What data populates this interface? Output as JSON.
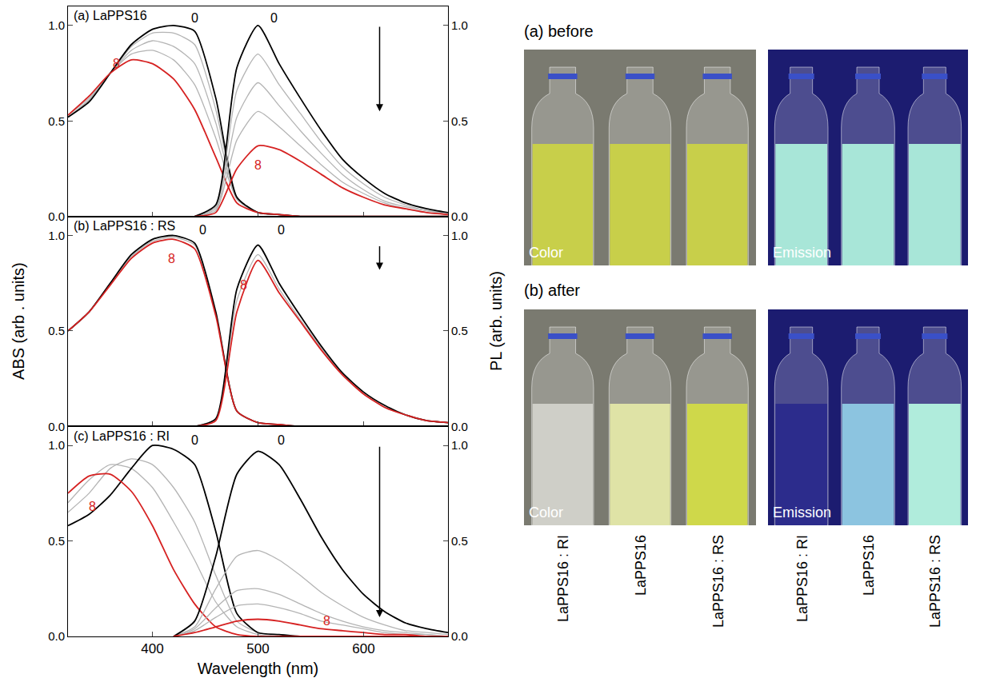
{
  "chart_data": [
    {
      "type": "line",
      "title": "(a) LaPPS16",
      "x": [
        320,
        340,
        360,
        380,
        400,
        420,
        440,
        460,
        480,
        500,
        520,
        540,
        560,
        580,
        600,
        620,
        640,
        660,
        680
      ],
      "xlim": [
        320,
        680
      ],
      "xticks": [
        400,
        500,
        600
      ],
      "ylim": [
        0,
        1.1
      ],
      "yticks": [
        {
          "value": 0,
          "label": "0.0"
        },
        {
          "value": 0.5,
          "label": "0.5"
        },
        {
          "value": 1,
          "label": "1.0"
        }
      ],
      "y2lim": [
        0,
        1.1
      ],
      "y2ticks": [
        {
          "value": 0,
          "label": "0.0"
        },
        {
          "value": 0.5,
          "label": "0.5"
        },
        {
          "value": 1,
          "label": "1.0"
        }
      ],
      "grid": false,
      "tick_labels": "y",
      "series": [
        {
          "color": "#b4b4b4",
          "axis": "y",
          "values": [
            0.52,
            0.61,
            0.75,
            0.89,
            0.96,
            0.96,
            0.9,
            0.56,
            0.1,
            0.02,
            0.01,
            0,
            0,
            0,
            0,
            0,
            0,
            0,
            0
          ]
        },
        {
          "color": "#b4b4b4",
          "axis": "y",
          "values": [
            0.52,
            0.61,
            0.75,
            0.87,
            0.92,
            0.89,
            0.8,
            0.49,
            0.09,
            0.02,
            0.01,
            0,
            0,
            0,
            0,
            0,
            0,
            0,
            0
          ]
        },
        {
          "color": "#b4b4b4",
          "axis": "y",
          "values": [
            0.53,
            0.62,
            0.75,
            0.85,
            0.87,
            0.82,
            0.69,
            0.41,
            0.09,
            0.02,
            0.01,
            0,
            0,
            0,
            0,
            0,
            0,
            0,
            0
          ]
        },
        {
          "color": "#000000",
          "axis": "y",
          "values": [
            0.52,
            0.6,
            0.75,
            0.9,
            0.98,
            1.0,
            0.97,
            0.62,
            0.1,
            0.02,
            0.01,
            0,
            0,
            0,
            0,
            0,
            0,
            0,
            0
          ]
        },
        {
          "color": "#d62222",
          "axis": "y",
          "values": [
            0.53,
            0.63,
            0.75,
            0.82,
            0.8,
            0.72,
            0.56,
            0.31,
            0.07,
            0.02,
            0.01,
            0,
            0,
            0,
            0,
            0,
            0,
            0,
            0
          ]
        },
        {
          "color": "#b4b4b4",
          "axis": "y2",
          "values": [
            null,
            null,
            null,
            null,
            null,
            null,
            0,
            0.05,
            0.66,
            0.85,
            0.69,
            0.54,
            0.39,
            0.26,
            0.17,
            0.1,
            0.06,
            0.03,
            0.02
          ]
        },
        {
          "color": "#b4b4b4",
          "axis": "y2",
          "values": [
            null,
            null,
            null,
            null,
            null,
            null,
            0,
            0.04,
            0.52,
            0.7,
            0.58,
            0.45,
            0.33,
            0.22,
            0.14,
            0.08,
            0.05,
            0.03,
            0.01
          ]
        },
        {
          "color": "#b4b4b4",
          "axis": "y2",
          "values": [
            null,
            null,
            null,
            null,
            null,
            null,
            0,
            0.03,
            0.4,
            0.55,
            0.47,
            0.37,
            0.27,
            0.18,
            0.12,
            0.07,
            0.04,
            0.02,
            0.01
          ]
        },
        {
          "color": "#000000",
          "axis": "y2",
          "values": [
            null,
            null,
            null,
            null,
            null,
            null,
            0,
            0.06,
            0.78,
            1.0,
            0.8,
            0.62,
            0.45,
            0.3,
            0.2,
            0.12,
            0.07,
            0.04,
            0.02
          ]
        },
        {
          "color": "#d62222",
          "axis": "y2",
          "values": [
            null,
            null,
            null,
            null,
            null,
            null,
            0,
            0.02,
            0.25,
            0.37,
            0.35,
            0.29,
            0.22,
            0.15,
            0.1,
            0.06,
            0.04,
            0.02,
            0.01
          ]
        }
      ],
      "annotations": [
        {
          "text": "0",
          "x": 440,
          "y": 1.04,
          "axis": "y",
          "color": "#000000"
        },
        {
          "text": "0",
          "x": 515,
          "y": 1.04,
          "axis": "y2",
          "color": "#000000"
        },
        {
          "text": "8",
          "x": 366,
          "y": 0.8,
          "axis": "y",
          "color": "#d62222"
        },
        {
          "text": "8",
          "x": 500,
          "y": 0.27,
          "axis": "y2",
          "color": "#d62222"
        }
      ]
    },
    {
      "type": "line",
      "title": "(b) LaPPS16 : RS",
      "x": [
        320,
        340,
        360,
        380,
        400,
        420,
        440,
        460,
        480,
        500,
        520,
        540,
        560,
        580,
        600,
        620,
        640,
        660,
        680
      ],
      "xlim": [
        320,
        680
      ],
      "xticks": [
        400,
        500,
        600
      ],
      "ylim": [
        0,
        1.1
      ],
      "yticks": [
        {
          "value": 0,
          "label": "0.0"
        },
        {
          "value": 0.5,
          "label": "0.5"
        },
        {
          "value": 1,
          "label": "1.0"
        }
      ],
      "y2lim": [
        0,
        1.1
      ],
      "y2ticks": [
        {
          "value": 0,
          "label": "0.0"
        },
        {
          "value": 0.5,
          "label": "0.5"
        },
        {
          "value": 1,
          "label": "1.0"
        }
      ],
      "grid": false,
      "tick_labels": "y",
      "series": [
        {
          "color": "#b4b4b4",
          "axis": "y",
          "values": [
            0.5,
            0.6,
            0.75,
            0.89,
            0.97,
            0.99,
            0.95,
            0.59,
            0.08,
            0.02,
            0.01,
            0,
            0,
            0,
            0,
            0,
            0,
            0,
            0
          ]
        },
        {
          "color": "#000000",
          "axis": "y",
          "values": [
            0.5,
            0.6,
            0.75,
            0.9,
            0.98,
            1.0,
            0.96,
            0.6,
            0.08,
            0.02,
            0.01,
            0,
            0,
            0,
            0,
            0,
            0,
            0,
            0
          ]
        },
        {
          "color": "#d62222",
          "axis": "y",
          "values": [
            0.5,
            0.6,
            0.74,
            0.88,
            0.96,
            0.98,
            0.93,
            0.58,
            0.08,
            0.02,
            0.01,
            0,
            0,
            0,
            0,
            0,
            0,
            0,
            0
          ]
        },
        {
          "color": "#b4b4b4",
          "axis": "y2",
          "values": [
            null,
            null,
            null,
            null,
            null,
            null,
            0,
            0.04,
            0.66,
            0.9,
            0.72,
            0.56,
            0.41,
            0.27,
            0.17,
            0.1,
            0.06,
            0.03,
            0.02
          ]
        },
        {
          "color": "#000000",
          "axis": "y2",
          "values": [
            null,
            null,
            null,
            null,
            null,
            null,
            0,
            0.04,
            0.72,
            0.95,
            0.75,
            0.58,
            0.42,
            0.28,
            0.18,
            0.11,
            0.06,
            0.03,
            0.02
          ]
        },
        {
          "color": "#d62222",
          "axis": "y2",
          "values": [
            null,
            null,
            null,
            null,
            null,
            null,
            0,
            0.03,
            0.6,
            0.87,
            0.7,
            0.55,
            0.4,
            0.27,
            0.17,
            0.1,
            0.06,
            0.03,
            0.02
          ]
        }
      ],
      "annotations": [
        {
          "text": "0",
          "x": 448,
          "y": 1.03,
          "axis": "y",
          "color": "#000000"
        },
        {
          "text": "0",
          "x": 522,
          "y": 1.03,
          "axis": "y2",
          "color": "#000000"
        },
        {
          "text": "8",
          "x": 418,
          "y": 0.88,
          "axis": "y",
          "color": "#d62222"
        },
        {
          "text": "8",
          "x": 486,
          "y": 0.74,
          "axis": "y2",
          "color": "#d62222"
        }
      ]
    },
    {
      "type": "line",
      "title": "(c) LaPPS16 : RI",
      "x": [
        320,
        340,
        360,
        380,
        400,
        420,
        440,
        460,
        480,
        500,
        520,
        540,
        560,
        580,
        600,
        620,
        640,
        660,
        680
      ],
      "xlim": [
        320,
        680
      ],
      "xticks": [
        400,
        500,
        600
      ],
      "ylim": [
        0,
        1.1
      ],
      "yticks": [
        {
          "value": 0,
          "label": "0.0"
        },
        {
          "value": 0.5,
          "label": "0.5"
        },
        {
          "value": 1,
          "label": "1.0"
        }
      ],
      "y2lim": [
        0,
        1.1
      ],
      "y2ticks": [
        {
          "value": 0,
          "label": "0.0"
        },
        {
          "value": 0.5,
          "label": "0.5"
        },
        {
          "value": 1,
          "label": "1.0"
        }
      ],
      "grid": false,
      "x_label": "Wavelength (nm)",
      "series": [
        {
          "color": "#b4b4b4",
          "axis": "y",
          "values": [
            0.65,
            0.75,
            0.88,
            0.93,
            0.9,
            0.78,
            0.6,
            0.32,
            0.08,
            0.02,
            0,
            0,
            0,
            0,
            0,
            0,
            0,
            0,
            0
          ]
        },
        {
          "color": "#b4b4b4",
          "axis": "y",
          "values": [
            0.7,
            0.82,
            0.9,
            0.88,
            0.78,
            0.6,
            0.4,
            0.18,
            0.05,
            0.01,
            0,
            0,
            0,
            0,
            0,
            0,
            0,
            0,
            0
          ]
        },
        {
          "color": "#000000",
          "axis": "y",
          "values": [
            0.58,
            0.64,
            0.74,
            0.88,
            1.0,
            0.98,
            0.9,
            0.55,
            0.12,
            0.02,
            0.01,
            0,
            0,
            0,
            0,
            0,
            0,
            0,
            0
          ]
        },
        {
          "color": "#d62222",
          "axis": "y",
          "values": [
            0.75,
            0.84,
            0.85,
            0.76,
            0.58,
            0.35,
            0.17,
            0.05,
            0.01,
            0,
            0,
            0,
            0,
            0,
            0,
            0,
            0,
            0,
            0
          ]
        },
        {
          "color": "#b4b4b4",
          "axis": "y2",
          "values": [
            null,
            null,
            null,
            null,
            null,
            0,
            0.05,
            0.25,
            0.42,
            0.45,
            0.4,
            0.32,
            0.23,
            0.16,
            0.1,
            0.06,
            0.03,
            0.02,
            0.01
          ]
        },
        {
          "color": "#b4b4b4",
          "axis": "y2",
          "values": [
            null,
            null,
            null,
            null,
            null,
            0,
            0.04,
            0.15,
            0.24,
            0.25,
            0.22,
            0.17,
            0.12,
            0.08,
            0.05,
            0.03,
            0.02,
            0.01,
            0
          ]
        },
        {
          "color": "#b4b4b4",
          "axis": "y2",
          "values": [
            null,
            null,
            null,
            null,
            null,
            0,
            0.03,
            0.1,
            0.16,
            0.17,
            0.15,
            0.12,
            0.08,
            0.06,
            0.04,
            0.02,
            0.01,
            0.01,
            0
          ]
        },
        {
          "color": "#000000",
          "axis": "y2",
          "values": [
            null,
            null,
            null,
            null,
            null,
            0,
            0.08,
            0.42,
            0.85,
            0.97,
            0.9,
            0.72,
            0.52,
            0.35,
            0.22,
            0.13,
            0.07,
            0.04,
            0.02
          ]
        },
        {
          "color": "#d62222",
          "axis": "y2",
          "values": [
            null,
            null,
            null,
            null,
            null,
            0,
            0.02,
            0.05,
            0.08,
            0.09,
            0.08,
            0.06,
            0.04,
            0.03,
            0.02,
            0.01,
            0.01,
            0,
            0
          ]
        }
      ],
      "annotations": [
        {
          "text": "0",
          "x": 440,
          "y": 1.03,
          "axis": "y",
          "color": "#000000"
        },
        {
          "text": "0",
          "x": 522,
          "y": 1.03,
          "axis": "y2",
          "color": "#000000"
        },
        {
          "text": "8",
          "x": 343,
          "y": 0.68,
          "axis": "y",
          "color": "#d62222"
        },
        {
          "text": "8",
          "x": 565,
          "y": 0.08,
          "axis": "y2",
          "color": "#d62222"
        }
      ]
    }
  ],
  "axis_titles": {
    "y": "ABS (arb . units)",
    "y2": "PL (arb. units)"
  },
  "photos": {
    "sample_labels": [
      "LaPPS16 : RI",
      "LaPPS16",
      "LaPPS16 : RS"
    ],
    "panels": [
      {
        "label": "(a) before",
        "images": [
          {
            "caption": "Color",
            "background": "#7a7a70",
            "colors": [
              "#c8cf4a",
              "#c8cf4a",
              "#c8cf4a"
            ]
          },
          {
            "caption": "Emission",
            "background": "#1c1c70",
            "colors": [
              "#a8e6d8",
              "#a8e6d8",
              "#a8e6d8"
            ]
          }
        ]
      },
      {
        "label": "(b) after",
        "images": [
          {
            "caption": "Color",
            "background": "#7a7a70",
            "colors": [
              "#cfcfc8",
              "#dfe3a6",
              "#cfd84a"
            ]
          },
          {
            "caption": "Emission",
            "background": "#1c1c70",
            "colors": [
              "#2c2c8c",
              "#8cc4e0",
              "#b0ecdc"
            ]
          }
        ]
      }
    ]
  }
}
